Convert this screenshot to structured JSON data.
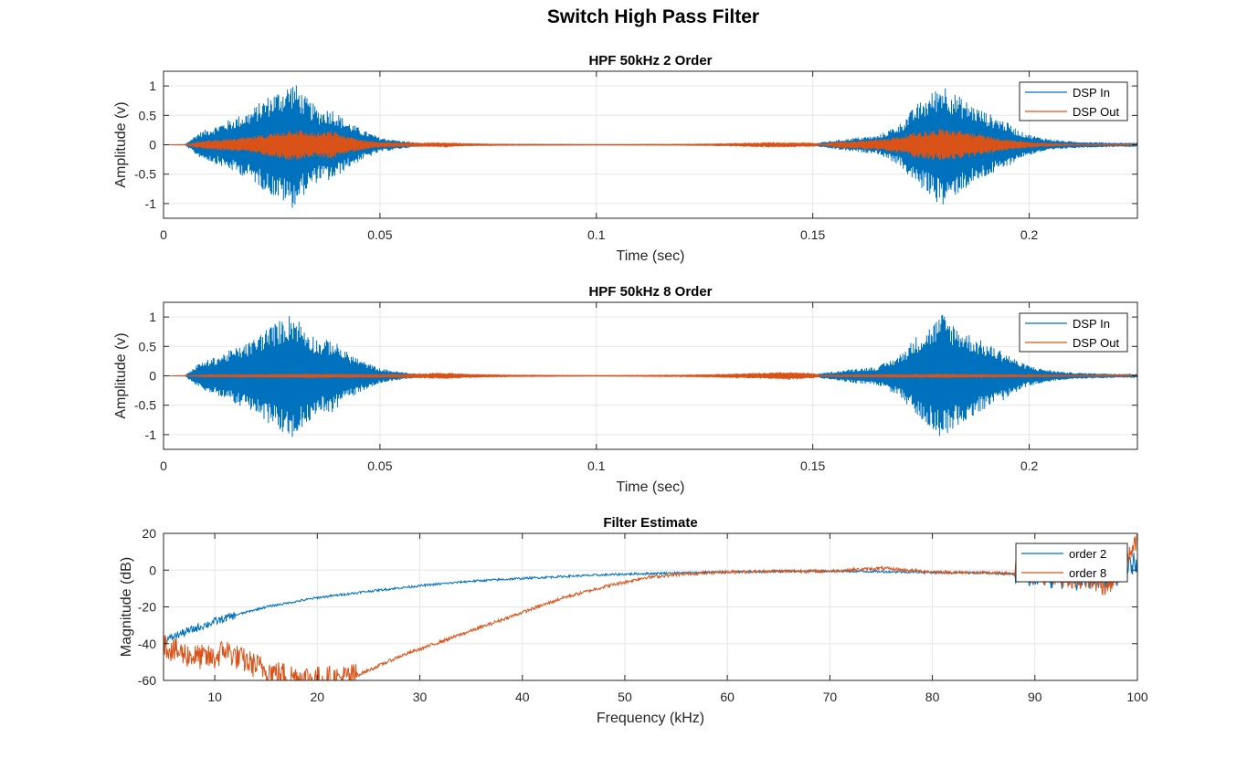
{
  "figure": {
    "title": "Switch High Pass Filter"
  },
  "colors": {
    "series_in": "#0072BD",
    "series_out": "#D95319",
    "grid": "#e6e6e6",
    "axis": "#262626"
  },
  "chart_data": [
    {
      "type": "line",
      "title": "HPF 50kHz 2 Order",
      "xlabel": "Time (sec)",
      "ylabel": "Amplitude (v)",
      "xlim": [
        0,
        0.225
      ],
      "ylim": [
        -1.25,
        1.25
      ],
      "xticks": [
        0,
        0.05,
        0.1,
        0.15,
        0.2
      ],
      "xtick_labels": [
        "0",
        "0.05",
        "0.1",
        "0.15",
        "0.2"
      ],
      "yticks": [
        1,
        0.5,
        0,
        -0.5,
        -1
      ],
      "ytick_labels": [
        "1",
        "0.5",
        "0",
        "-0.5",
        "-1"
      ],
      "grid": true,
      "legend_position": "top-right",
      "legend": [
        "DSP In",
        "DSP Out"
      ],
      "series": [
        {
          "name": "DSP In",
          "envelope": {
            "x": [
              0,
              0.005,
              0.008,
              0.012,
              0.016,
              0.02,
              0.024,
              0.027,
              0.03,
              0.033,
              0.036,
              0.039,
              0.042,
              0.046,
              0.05,
              0.055,
              0.06,
              0.07,
              0.08,
              0.1,
              0.12,
              0.14,
              0.15,
              0.152,
              0.156,
              0.16,
              0.165,
              0.17,
              0.174,
              0.177,
              0.18,
              0.183,
              0.186,
              0.19,
              0.194,
              0.198,
              0.202,
              0.206,
              0.21,
              0.215,
              0.22,
              0.225
            ],
            "amplitude": [
              0,
              0.005,
              0.2,
              0.32,
              0.45,
              0.58,
              0.82,
              0.95,
              1.08,
              0.8,
              0.6,
              0.62,
              0.42,
              0.25,
              0.12,
              0.06,
              0.02,
              0.01,
              0.01,
              0.005,
              0.005,
              0.01,
              0.01,
              0.04,
              0.08,
              0.12,
              0.15,
              0.35,
              0.68,
              0.85,
              1.07,
              0.86,
              0.72,
              0.55,
              0.42,
              0.22,
              0.13,
              0.08,
              0.05,
              0.04,
              0.03,
              0.03
            ]
          }
        },
        {
          "name": "DSP Out",
          "envelope": {
            "x": [
              0,
              0.005,
              0.008,
              0.012,
              0.016,
              0.02,
              0.024,
              0.027,
              0.03,
              0.033,
              0.036,
              0.039,
              0.042,
              0.046,
              0.05,
              0.055,
              0.06,
              0.065,
              0.07,
              0.08,
              0.1,
              0.12,
              0.13,
              0.14,
              0.15,
              0.152,
              0.156,
              0.16,
              0.165,
              0.17,
              0.174,
              0.177,
              0.18,
              0.183,
              0.186,
              0.19,
              0.194,
              0.198,
              0.202,
              0.206,
              0.21,
              0.215,
              0.22,
              0.225
            ],
            "amplitude": [
              0,
              0.003,
              0.05,
              0.08,
              0.1,
              0.13,
              0.18,
              0.22,
              0.28,
              0.22,
              0.2,
              0.24,
              0.15,
              0.08,
              0.04,
              0.03,
              0.03,
              0.04,
              0.02,
              0.01,
              0.005,
              0.01,
              0.02,
              0.04,
              0.03,
              0.01,
              0.05,
              0.06,
              0.09,
              0.14,
              0.22,
              0.24,
              0.28,
              0.24,
              0.22,
              0.15,
              0.1,
              0.06,
              0.03,
              0.02,
              0.01,
              0.01,
              0.01,
              0.01
            ]
          }
        }
      ]
    },
    {
      "type": "line",
      "title": "HPF 50kHz 8 Order",
      "xlabel": "Time (sec)",
      "ylabel": "Amplitude (v)",
      "xlim": [
        0,
        0.225
      ],
      "ylim": [
        -1.25,
        1.25
      ],
      "xticks": [
        0,
        0.05,
        0.1,
        0.15,
        0.2
      ],
      "xtick_labels": [
        "0",
        "0.05",
        "0.1",
        "0.15",
        "0.2"
      ],
      "yticks": [
        1,
        0.5,
        0,
        -0.5,
        -1
      ],
      "ytick_labels": [
        "1",
        "0.5",
        "0",
        "-0.5",
        "-1"
      ],
      "grid": true,
      "legend_position": "top-right",
      "legend": [
        "DSP In",
        "DSP Out"
      ],
      "series": [
        {
          "name": "DSP In",
          "envelope": {
            "x": [
              0,
              0.005,
              0.008,
              0.012,
              0.016,
              0.02,
              0.024,
              0.027,
              0.03,
              0.033,
              0.036,
              0.039,
              0.042,
              0.046,
              0.05,
              0.055,
              0.06,
              0.07,
              0.08,
              0.1,
              0.12,
              0.14,
              0.15,
              0.152,
              0.156,
              0.16,
              0.165,
              0.17,
              0.174,
              0.177,
              0.18,
              0.183,
              0.186,
              0.19,
              0.194,
              0.198,
              0.202,
              0.206,
              0.21,
              0.215,
              0.22,
              0.225
            ],
            "amplitude": [
              0,
              0.005,
              0.2,
              0.32,
              0.45,
              0.58,
              0.82,
              0.95,
              1.08,
              0.8,
              0.6,
              0.62,
              0.42,
              0.25,
              0.12,
              0.06,
              0.02,
              0.01,
              0.01,
              0.005,
              0.005,
              0.01,
              0.01,
              0.04,
              0.08,
              0.12,
              0.15,
              0.35,
              0.68,
              0.85,
              1.07,
              0.86,
              0.72,
              0.55,
              0.42,
              0.22,
              0.13,
              0.08,
              0.05,
              0.04,
              0.03,
              0.03
            ]
          }
        },
        {
          "name": "DSP Out",
          "envelope": {
            "x": [
              0,
              0.005,
              0.01,
              0.02,
              0.03,
              0.04,
              0.05,
              0.055,
              0.06,
              0.065,
              0.07,
              0.08,
              0.1,
              0.12,
              0.13,
              0.14,
              0.145,
              0.15,
              0.152,
              0.16,
              0.17,
              0.18,
              0.19,
              0.2,
              0.21,
              0.225
            ],
            "amplitude": [
              0,
              0.003,
              0.02,
              0.025,
              0.03,
              0.03,
              0.025,
              0.03,
              0.04,
              0.05,
              0.03,
              0.015,
              0.005,
              0.015,
              0.03,
              0.05,
              0.06,
              0.04,
              0.01,
              0.02,
              0.025,
              0.03,
              0.025,
              0.02,
              0.01,
              0.01
            ]
          }
        }
      ]
    },
    {
      "type": "line",
      "title": "Filter Estimate",
      "xlabel": "Frequency (kHz)",
      "ylabel": "Magnitude (dB)",
      "xlim": [
        5,
        100
      ],
      "ylim": [
        -60,
        20
      ],
      "xticks": [
        10,
        20,
        30,
        40,
        50,
        60,
        70,
        80,
        90,
        100
      ],
      "xtick_labels": [
        "10",
        "20",
        "30",
        "40",
        "50",
        "60",
        "70",
        "80",
        "90",
        "100"
      ],
      "yticks": [
        20,
        0,
        -20,
        -40,
        -60
      ],
      "ytick_labels": [
        "20",
        "0",
        "-20",
        "-40",
        "-60"
      ],
      "grid": true,
      "legend_position": "top-right",
      "legend": [
        "order 2",
        "order 8"
      ],
      "series": [
        {
          "name": "order 2",
          "x": [
            5,
            6,
            8,
            10,
            12,
            15,
            18,
            20,
            25,
            30,
            35,
            40,
            45,
            50,
            55,
            60,
            65,
            70,
            75,
            80,
            85,
            88,
            90,
            92,
            94,
            96,
            98,
            100
          ],
          "y": [
            -39,
            -36,
            -32,
            -28,
            -24.5,
            -20,
            -17,
            -15,
            -11.5,
            -8.5,
            -6,
            -4.5,
            -3.2,
            -2.2,
            -1.5,
            -1,
            -0.8,
            -0.5,
            -0.8,
            -1.2,
            -1.5,
            -2,
            -3,
            -4,
            -5,
            -4,
            -3,
            5
          ]
        },
        {
          "name": "order 8",
          "x": [
            5,
            6,
            8,
            10,
            11,
            12,
            14,
            16,
            18,
            20,
            22,
            24,
            26,
            28,
            30,
            33,
            36,
            40,
            44,
            48,
            52,
            56,
            60,
            65,
            70,
            75,
            80,
            85,
            90,
            92,
            95,
            97,
            98,
            99,
            100
          ],
          "y": [
            -40,
            -44,
            -47,
            -48,
            -43,
            -47,
            -52,
            -56,
            -58,
            -59,
            -59,
            -57,
            -52,
            -47,
            -43,
            -37,
            -31,
            -23,
            -15,
            -9,
            -4,
            -2,
            -1,
            -0.5,
            -0.5,
            1,
            -1,
            -1.5,
            -2,
            -3,
            -5,
            -8,
            -3,
            5,
            15
          ]
        }
      ]
    }
  ]
}
